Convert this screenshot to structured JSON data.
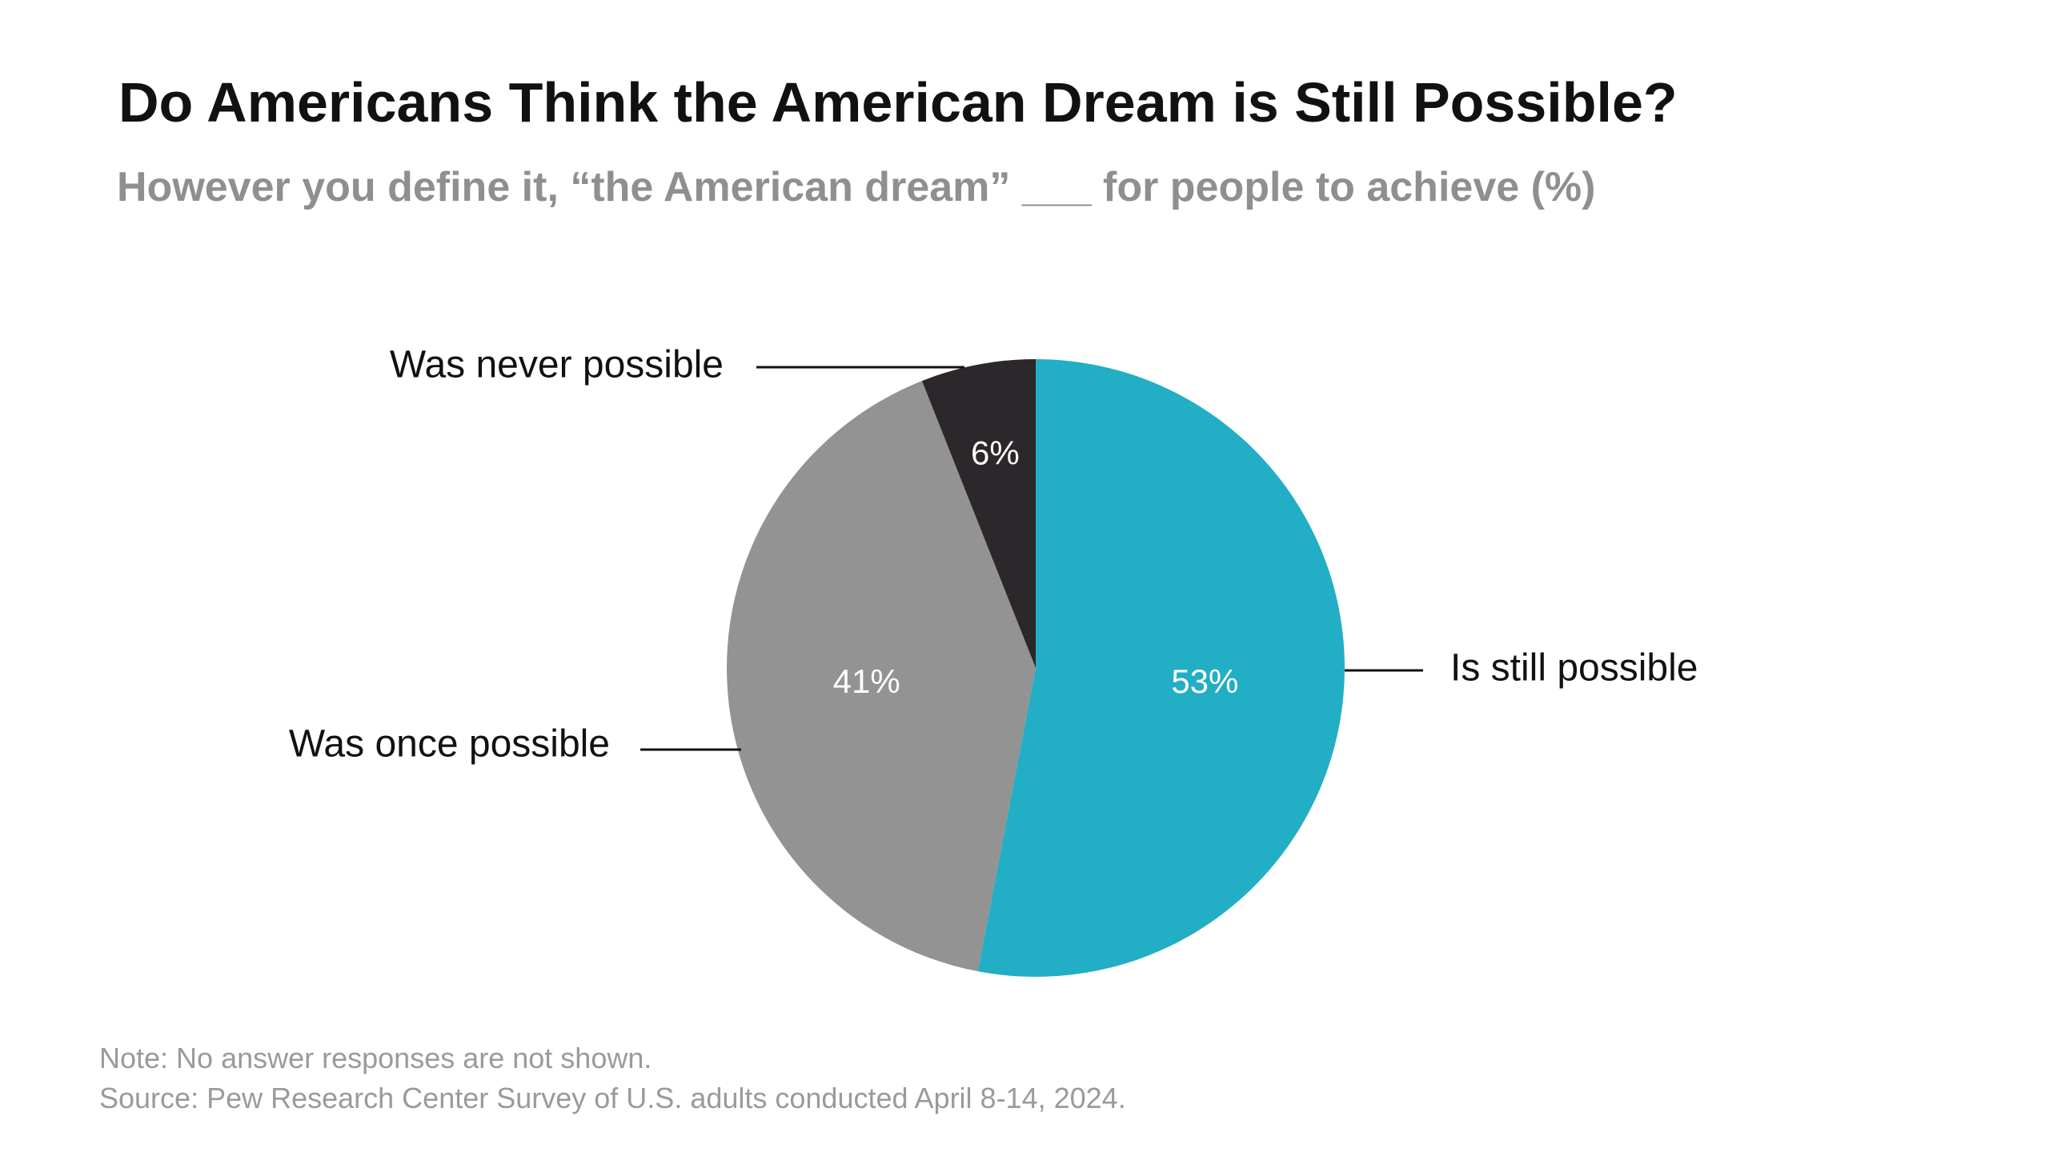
{
  "chart_data": {
    "type": "pie",
    "title": "Do Americans Think the American Dream is Still Possible?",
    "subtitle": "However you define it, “the American dream” ___ for people to achieve (%)",
    "slices": [
      {
        "label": "Is still possible",
        "value": 53,
        "value_label": "53%",
        "color": "#22aec4"
      },
      {
        "label": "Was once possible",
        "value": 41,
        "value_label": "41%",
        "color": "#939393"
      },
      {
        "label": "Was never possible",
        "value": 6,
        "value_label": "6%",
        "color": "#2b272b"
      }
    ],
    "start": "12 o'clock",
    "direction": "clockwise"
  },
  "footer": {
    "note": "Note: No answer responses are not shown.",
    "source": "Source: Pew Research Center Survey of U.S. adults conducted April 8-14, 2024."
  }
}
